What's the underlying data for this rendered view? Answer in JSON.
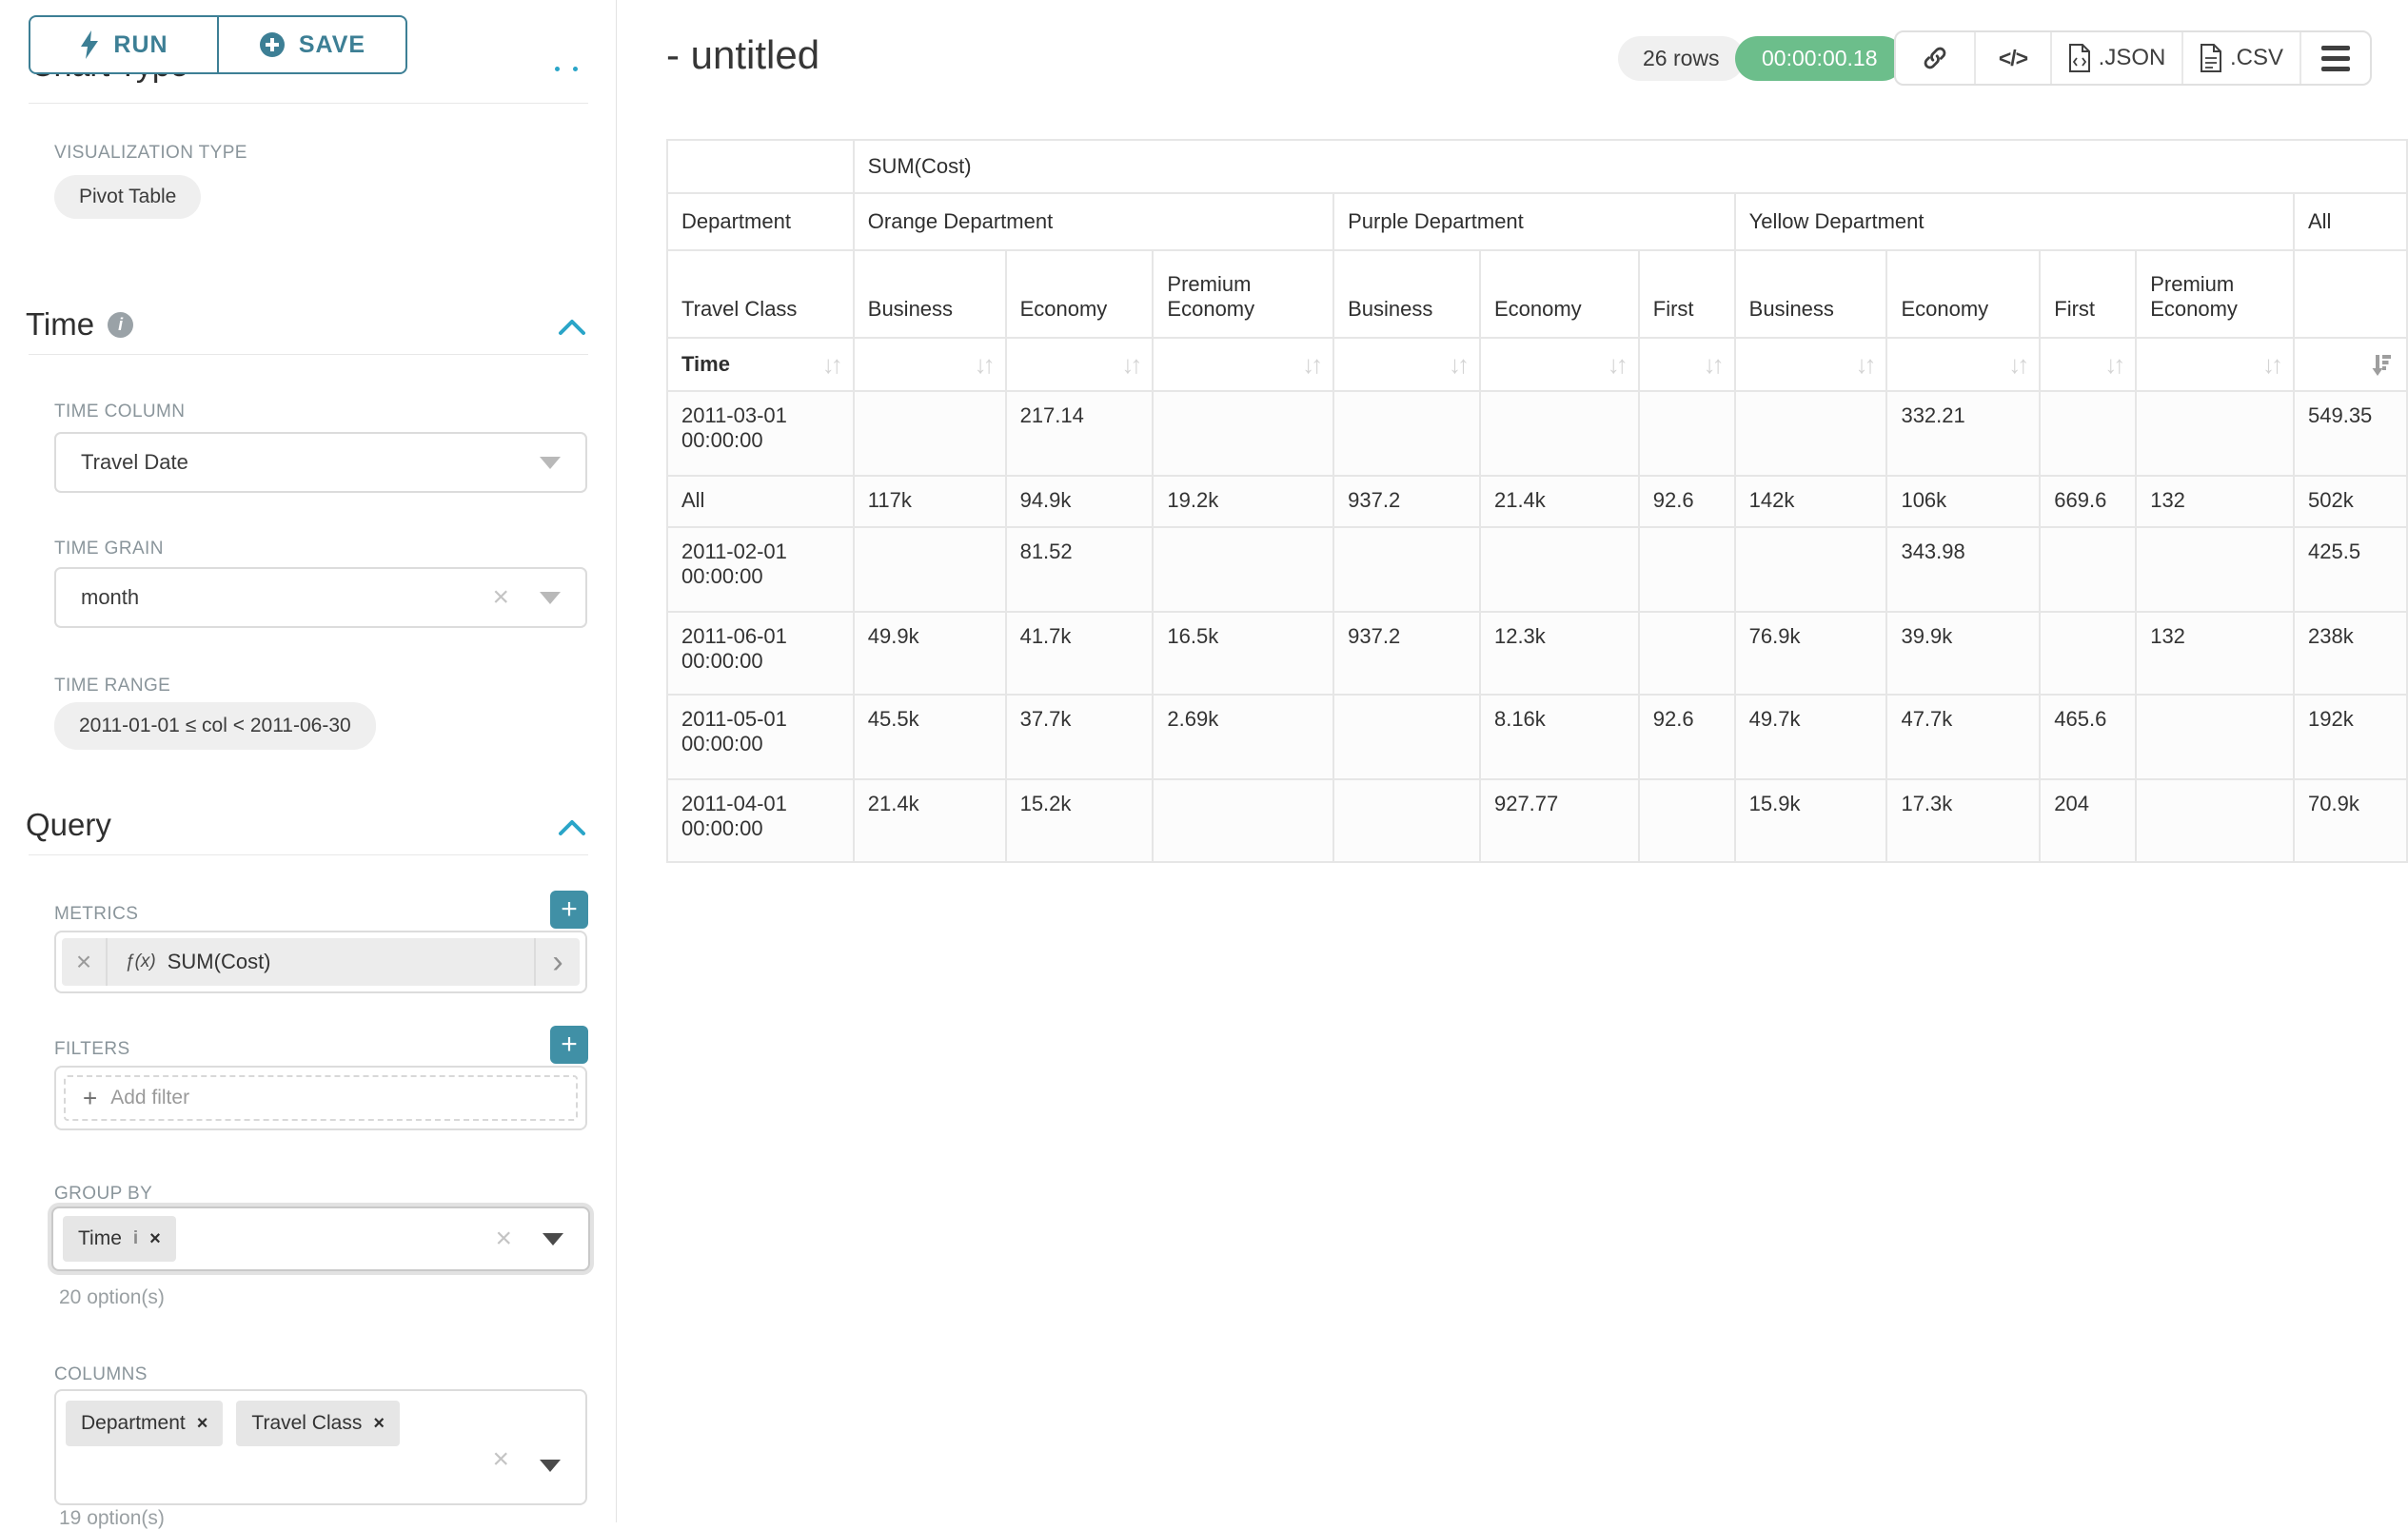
{
  "colors": {
    "accent_teal": "#3d7f95",
    "chevron_blue": "#2aa5c8",
    "timer_green": "#6cbe8b",
    "plus_button_teal": "#4090a6"
  },
  "sidebar": {
    "run_label": "RUN",
    "save_label": "SAVE",
    "chart_type_heading": "Chart Type",
    "visualization_type_label": "VISUALIZATION TYPE",
    "visualization_type_value": "Pivot Table",
    "time_section": {
      "title": "Time",
      "time_column_label": "TIME COLUMN",
      "time_column_value": "Travel Date",
      "time_grain_label": "TIME GRAIN",
      "time_grain_value": "month",
      "time_range_label": "TIME RANGE",
      "time_range_value": "2011-01-01 ≤ col < 2011-06-30"
    },
    "query_section": {
      "title": "Query",
      "metrics_label": "METRICS",
      "metric_fx": "ƒ(x)",
      "metric_value": "SUM(Cost)",
      "filters_label": "FILTERS",
      "add_filter_label": "Add filter",
      "group_by_label": "GROUP BY",
      "group_by_tags": [
        "Time"
      ],
      "group_by_options_hint": "20 option(s)",
      "columns_label": "COLUMNS",
      "columns_tags": [
        "Department",
        "Travel Class"
      ],
      "columns_options_hint": "19 option(s)"
    }
  },
  "header": {
    "title": "- untitled",
    "row_count": "26 rows",
    "timer": "00:00:00.18",
    "export_json_label": ".JSON",
    "export_csv_label": ".CSV",
    "code_glyph": "</>"
  },
  "pivot_table": {
    "metric_label": "SUM(Cost)",
    "corner_row2": "Department",
    "corner_row3": "Travel Class",
    "corner_row4": "Time",
    "column_groups": [
      {
        "label": "Orange Department",
        "children": [
          "Business",
          "Economy",
          "Premium Economy"
        ]
      },
      {
        "label": "Purple Department",
        "children": [
          "Business",
          "Economy",
          "First"
        ]
      },
      {
        "label": "Yellow Department",
        "children": [
          "Business",
          "Economy",
          "First",
          "Premium Economy"
        ]
      },
      {
        "label": "All",
        "children": [
          ""
        ]
      }
    ],
    "rows": [
      {
        "label": "2011-03-01 00:00:00",
        "values": [
          "",
          "217.14",
          "",
          "",
          "",
          "",
          "",
          "332.21",
          "",
          "",
          "549.35"
        ]
      },
      {
        "label": "All",
        "values": [
          "117k",
          "94.9k",
          "19.2k",
          "937.2",
          "21.4k",
          "92.6",
          "142k",
          "106k",
          "669.6",
          "132",
          "502k"
        ]
      },
      {
        "label": "2011-02-01 00:00:00",
        "values": [
          "",
          "81.52",
          "",
          "",
          "",
          "",
          "",
          "343.98",
          "",
          "",
          "425.5"
        ]
      },
      {
        "label": "2011-06-01 00:00:00",
        "values": [
          "49.9k",
          "41.7k",
          "16.5k",
          "937.2",
          "12.3k",
          "",
          "76.9k",
          "39.9k",
          "",
          "132",
          "238k"
        ]
      },
      {
        "label": "2011-05-01 00:00:00",
        "values": [
          "45.5k",
          "37.7k",
          "2.69k",
          "",
          "8.16k",
          "92.6",
          "49.7k",
          "47.7k",
          "465.6",
          "",
          "192k"
        ]
      },
      {
        "label": "2011-04-01 00:00:00",
        "values": [
          "21.4k",
          "15.2k",
          "",
          "",
          "927.77",
          "",
          "15.9k",
          "17.3k",
          "204",
          "",
          "70.9k"
        ]
      }
    ]
  }
}
